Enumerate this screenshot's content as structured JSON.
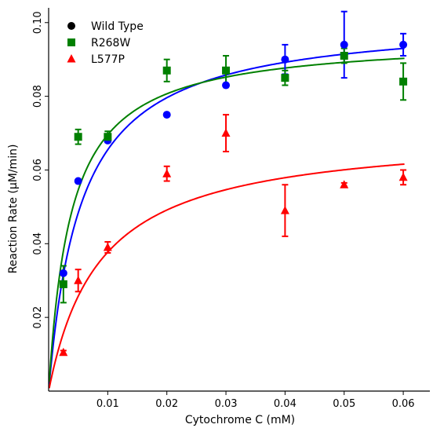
{
  "chart_data": {
    "type": "scatter",
    "xlabel": "Cytochrome C (mM)",
    "ylabel": "Reaction Rate (μM/min)",
    "xlim": [
      0.0,
      0.0645
    ],
    "ylim": [
      0.0,
      0.104
    ],
    "x_ticks": [
      0.01,
      0.02,
      0.03,
      0.04,
      0.05,
      0.06
    ],
    "x_tick_labels": [
      "0.01",
      "0.02",
      "0.03",
      "0.04",
      "0.05",
      "0.06"
    ],
    "y_ticks": [
      0.02,
      0.04,
      0.06,
      0.08,
      0.1
    ],
    "y_tick_labels": [
      "0.02",
      "0.04",
      "0.06",
      "0.08",
      "0.10"
    ],
    "grid": false,
    "legend_position": "top-left",
    "series": [
      {
        "name": "Wild Type",
        "color": "#0000ff",
        "legend_color": "#000000",
        "marker": "circle",
        "x": [
          0.0025,
          0.005,
          0.01,
          0.02,
          0.03,
          0.04,
          0.05,
          0.06
        ],
        "y": [
          0.032,
          0.057,
          0.068,
          0.075,
          0.083,
          0.09,
          0.094,
          0.094
        ],
        "err": [
          0.0,
          0.0,
          0.0,
          0.0,
          0.0,
          0.004,
          0.009,
          0.003
        ],
        "fit": {
          "vmax": 0.1015,
          "km": 0.0055
        }
      },
      {
        "name": "R268W",
        "color": "#008000",
        "legend_color": "#008000",
        "marker": "square",
        "x": [
          0.0025,
          0.005,
          0.01,
          0.02,
          0.03,
          0.04,
          0.05,
          0.06
        ],
        "y": [
          0.029,
          0.069,
          0.069,
          0.087,
          0.087,
          0.085,
          0.091,
          0.084
        ],
        "err": [
          0.005,
          0.002,
          0.0015,
          0.003,
          0.004,
          0.002,
          0.002,
          0.005
        ],
        "fit": {
          "vmax": 0.096,
          "km": 0.0038
        }
      },
      {
        "name": "L577P",
        "color": "#ff0000",
        "legend_color": "#ff0000",
        "marker": "triangle",
        "x": [
          0.0025,
          0.005,
          0.01,
          0.02,
          0.03,
          0.04,
          0.05,
          0.06
        ],
        "y": [
          0.0105,
          0.03,
          0.039,
          0.059,
          0.07,
          0.049,
          0.056,
          0.058
        ],
        "err": [
          0.0005,
          0.003,
          0.0015,
          0.002,
          0.005,
          0.007,
          0.0005,
          0.002
        ],
        "fit": {
          "vmax": 0.0705,
          "km": 0.0087
        }
      }
    ]
  }
}
